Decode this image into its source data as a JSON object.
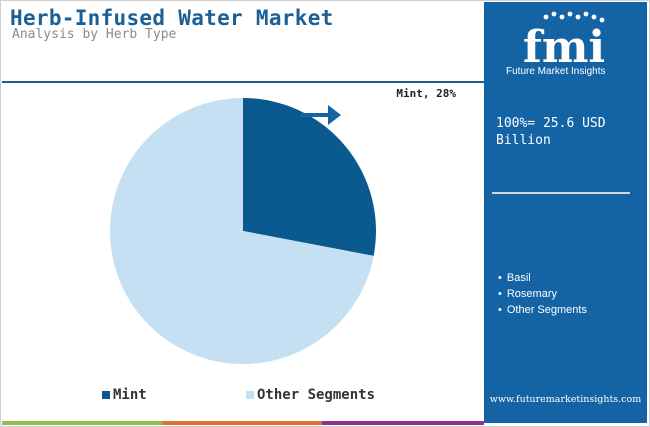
{
  "header": {
    "title": "Herb-Infused Water Market",
    "subtitle": "Analysis by Herb Type"
  },
  "sidebar": {
    "logo_letters": "fmi",
    "logo_tagline": "Future Market Insights",
    "total_line1": "100%= 25.6 USD",
    "total_line2": "Billion",
    "other_segments": [
      "Basil",
      "Rosemary",
      "Other Segments"
    ],
    "website": "www.futuremarketinsights.com"
  },
  "colors": {
    "brand_blue": "#1464a5",
    "mint": "#0b5a8f",
    "other": "#c5e0f2",
    "bar_green": "#8cc24a",
    "bar_orange": "#e2722c",
    "bar_purple": "#8a3391"
  },
  "chart_data": {
    "type": "pie",
    "title": "Herb-Infused Water Market",
    "subtitle": "Analysis by Herb Type",
    "categories": [
      "Mint",
      "Other Segments"
    ],
    "values": [
      28,
      72
    ],
    "unit": "%",
    "callout": "Mint, 28%",
    "legend": [
      "Mint",
      "Other Segments"
    ],
    "legend_position": "bottom"
  }
}
